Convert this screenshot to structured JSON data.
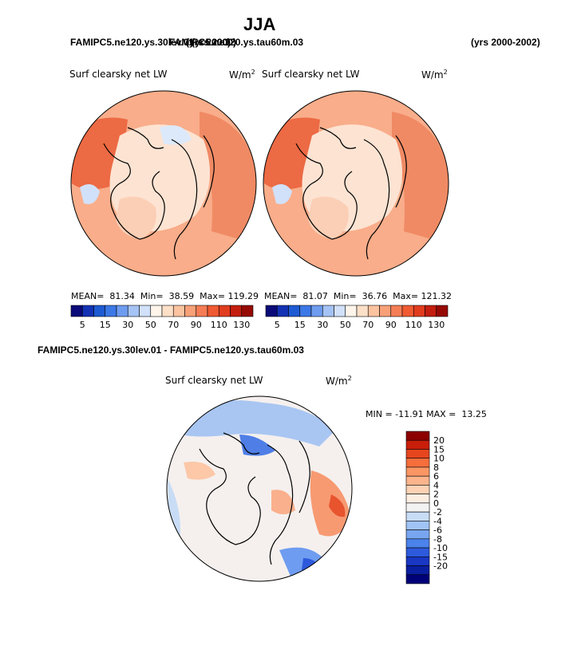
{
  "page_title": "JJA",
  "header": {
    "case_overlap_a": "FAMIPC5.ne120.ys.30lev.01",
    "case_overlap_b": "FAMIPC5.ne120.ys.tau60m.03",
    "years_overlap_a": "(yrs 2000)",
    "years_overlap_b": "(yrs 2000)",
    "years_right": "(yrs 2000-2002)"
  },
  "panels": {
    "left": {
      "title": "Surf clearsky net LW",
      "units": "W/m",
      "units_exp": "2",
      "stats_text": "MEAN=  81.34  Min=  38.59  Max= 119.29"
    },
    "right": {
      "title": "Surf clearsky net LW",
      "units": "W/m",
      "units_exp": "2",
      "stats_text": "MEAN=  81.07  Min=  36.76  Max= 121.32"
    },
    "diff": {
      "header": "FAMIPC5.ne120.ys.30lev.01 - FAMIPC5.ne120.ys.tau60m.03",
      "title": "Surf clearsky net LW",
      "units": "W/m",
      "units_exp": "2",
      "minmax_text": "MIN = -11.91 MAX =  13.25"
    }
  },
  "colorbar_abs": {
    "labels": [
      "5",
      "15",
      "30",
      "50",
      "70",
      "90",
      "110",
      "130"
    ],
    "colors": [
      "#0a0a78",
      "#1432b4",
      "#1e5ad2",
      "#3c78e6",
      "#6e9cf0",
      "#a5c3f5",
      "#d2e1fa",
      "#fff5eb",
      "#fde0c8",
      "#fbc3a0",
      "#f8a078",
      "#f57d55",
      "#f05a32",
      "#e13c1e",
      "#c31e0f",
      "#960a05"
    ]
  },
  "colorbar_diff": {
    "labels": [
      "20",
      "15",
      "10",
      "8",
      "6",
      "4",
      "2",
      "0",
      "-2",
      "-4",
      "-6",
      "-8",
      "-10",
      "-15",
      "-20"
    ],
    "colors": [
      "#8c0000",
      "#c81e0a",
      "#e6461e",
      "#f56e3c",
      "#fa9664",
      "#fcb48c",
      "#fdd2b4",
      "#fdeee2",
      "#f2f2f2",
      "#c8dcf5",
      "#a0c3f5",
      "#78a5f0",
      "#4b82eb",
      "#2d5adc",
      "#1937c3",
      "#0a1ea0",
      "#000078"
    ]
  },
  "colors": {
    "ocean_warm": "#f8a47e",
    "land_pale": "#fde6d4",
    "diff_neutral": "#f5f0ee",
    "coast": "#000000"
  }
}
